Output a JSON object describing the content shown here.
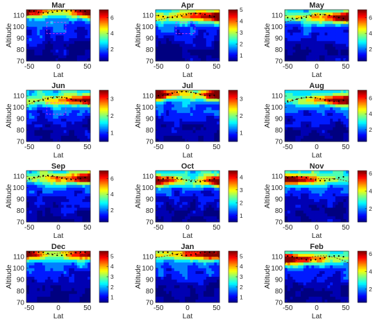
{
  "chart_data": [
    {
      "type": "heatmap",
      "title": "Mar",
      "xlabel": "Lat",
      "ylabel": "Altitude",
      "xlim": [
        -55,
        55
      ],
      "ylim": [
        70,
        115
      ],
      "xticks": [
        -50,
        0,
        50
      ],
      "yticks": [
        70,
        80,
        90,
        100,
        110
      ],
      "colorbar": {
        "min": 0.5,
        "max": 7,
        "ticks": [
          2,
          4,
          6
        ]
      },
      "peak_altitude": 113,
      "peak_value": 6.5,
      "peak_side": "both",
      "rings": [
        "dotted",
        "magenta"
      ]
    },
    {
      "type": "heatmap",
      "title": "Apr",
      "xlabel": "Lat",
      "ylabel": "Altitude",
      "xlim": [
        -55,
        55
      ],
      "ylim": [
        70,
        115
      ],
      "xticks": [
        -50,
        0,
        50
      ],
      "yticks": [
        70,
        80,
        90,
        100,
        110
      ],
      "colorbar": {
        "min": 0.5,
        "max": 5,
        "ticks": [
          1,
          2,
          3,
          4,
          5
        ]
      },
      "peak_altitude": 109,
      "peak_value": 5,
      "peak_side": "north",
      "rings": [
        "dotted",
        "magenta"
      ]
    },
    {
      "type": "heatmap",
      "title": "May",
      "xlabel": "Lat",
      "ylabel": "Altitude",
      "xlim": [
        -55,
        55
      ],
      "ylim": [
        70,
        115
      ],
      "xticks": [
        -50,
        0,
        50
      ],
      "yticks": [
        70,
        80,
        90,
        100,
        110
      ],
      "colorbar": {
        "min": 0.5,
        "max": 7,
        "ticks": [
          2,
          4,
          6
        ]
      },
      "peak_altitude": 108,
      "peak_value": 6.5,
      "peak_side": "north",
      "rings": [
        "dotted"
      ]
    },
    {
      "type": "heatmap",
      "title": "Jun",
      "xlabel": "Lat",
      "ylabel": "Altitude",
      "xlim": [
        -55,
        55
      ],
      "ylim": [
        70,
        115
      ],
      "xticks": [
        -50,
        0,
        50
      ],
      "yticks": [
        70,
        80,
        90,
        100,
        110
      ],
      "colorbar": {
        "min": 0.5,
        "max": 3.5,
        "ticks": [
          1,
          2,
          3
        ]
      },
      "peak_altitude": 106,
      "peak_value": 3.5,
      "peak_side": "north",
      "rings": [
        "dotted",
        "magenta"
      ]
    },
    {
      "type": "heatmap",
      "title": "Jul",
      "xlabel": "Lat",
      "ylabel": "Altitude",
      "xlim": [
        -55,
        55
      ],
      "ylim": [
        70,
        115
      ],
      "xticks": [
        -50,
        0,
        50
      ],
      "yticks": [
        70,
        80,
        90,
        100,
        110
      ],
      "colorbar": {
        "min": 0.5,
        "max": 3.5,
        "ticks": [
          1,
          2,
          3
        ]
      },
      "peak_altitude": 111,
      "peak_value": 3.5,
      "peak_side": "both",
      "rings": [
        "dotted"
      ]
    },
    {
      "type": "heatmap",
      "title": "Aug",
      "xlabel": "Lat",
      "ylabel": "Altitude",
      "xlim": [
        -55,
        55
      ],
      "ylim": [
        70,
        115
      ],
      "xticks": [
        -50,
        0,
        50
      ],
      "yticks": [
        70,
        80,
        90,
        100,
        110
      ],
      "colorbar": {
        "min": 0.5,
        "max": 7,
        "ticks": [
          2,
          4,
          6
        ]
      },
      "peak_altitude": 106,
      "peak_value": 6.5,
      "peak_side": "north",
      "rings": [
        "dotted"
      ]
    },
    {
      "type": "heatmap",
      "title": "Sep",
      "xlabel": "Lat",
      "ylabel": "Altitude",
      "xlim": [
        -55,
        55
      ],
      "ylim": [
        70,
        115
      ],
      "xticks": [
        -50,
        0,
        50
      ],
      "yticks": [
        70,
        80,
        90,
        100,
        110
      ],
      "colorbar": {
        "min": 0.5,
        "max": 7,
        "ticks": [
          2,
          4,
          6
        ]
      },
      "peak_altitude": 108,
      "peak_value": 6.5,
      "peak_side": "north",
      "rings": [
        "dotted"
      ]
    },
    {
      "type": "heatmap",
      "title": "Oct",
      "xlabel": "Lat",
      "ylabel": "Altitude",
      "xlim": [
        -55,
        55
      ],
      "ylim": [
        70,
        115
      ],
      "xticks": [
        -50,
        0,
        50
      ],
      "yticks": [
        70,
        80,
        90,
        100,
        110
      ],
      "colorbar": {
        "min": 0.5,
        "max": 4.5,
        "ticks": [
          1,
          2,
          3,
          4
        ]
      },
      "peak_altitude": 106,
      "peak_value": 4.5,
      "peak_side": "both",
      "rings": [
        "dotted"
      ]
    },
    {
      "type": "heatmap",
      "title": "Nov",
      "xlabel": "Lat",
      "ylabel": "Altitude",
      "xlim": [
        -55,
        55
      ],
      "ylim": [
        70,
        115
      ],
      "xticks": [
        -50,
        0,
        50
      ],
      "yticks": [
        70,
        80,
        90,
        100,
        110
      ],
      "colorbar": {
        "min": 0.5,
        "max": 6.3,
        "ticks": [
          2,
          4,
          6
        ]
      },
      "peak_altitude": 107,
      "peak_value": 6,
      "peak_side": "south",
      "rings": [
        "dotted"
      ]
    },
    {
      "type": "heatmap",
      "title": "Dec",
      "xlabel": "Lat",
      "ylabel": "Altitude",
      "xlim": [
        -55,
        55
      ],
      "ylim": [
        70,
        115
      ],
      "xticks": [
        -50,
        0,
        50
      ],
      "yticks": [
        70,
        80,
        90,
        100,
        110
      ],
      "colorbar": {
        "min": 0.5,
        "max": 5.5,
        "ticks": [
          1,
          2,
          3,
          4,
          5
        ]
      },
      "peak_altitude": 112,
      "peak_value": 5,
      "peak_side": "both",
      "rings": [
        "dotted"
      ]
    },
    {
      "type": "heatmap",
      "title": "Jan",
      "xlabel": "Lat",
      "ylabel": "Altitude",
      "xlim": [
        -55,
        55
      ],
      "ylim": [
        70,
        115
      ],
      "xticks": [
        -50,
        0,
        50
      ],
      "yticks": [
        70,
        80,
        90,
        100,
        110
      ],
      "colorbar": {
        "min": 0.5,
        "max": 5.5,
        "ticks": [
          1,
          2,
          3,
          4,
          5
        ]
      },
      "peak_altitude": 112,
      "peak_value": 5,
      "peak_side": "north",
      "rings": [
        "dotted"
      ]
    },
    {
      "type": "heatmap",
      "title": "Feb",
      "xlabel": "Lat",
      "ylabel": "Altitude",
      "xlim": [
        -55,
        55
      ],
      "ylim": [
        70,
        115
      ],
      "xticks": [
        -50,
        0,
        50
      ],
      "yticks": [
        70,
        80,
        90,
        100,
        110
      ],
      "colorbar": {
        "min": 0.5,
        "max": 6.3,
        "ticks": [
          2,
          4,
          6
        ]
      },
      "peak_altitude": 108,
      "peak_value": 6,
      "peak_side": "south",
      "rings": [
        "dotted"
      ]
    }
  ],
  "colors": {
    "colormap": "jet",
    "marker_dots": "#000000",
    "dashed_curve": "#7a1010",
    "ring_magenta": "#ff3cf0",
    "axes_text": "#262626"
  }
}
